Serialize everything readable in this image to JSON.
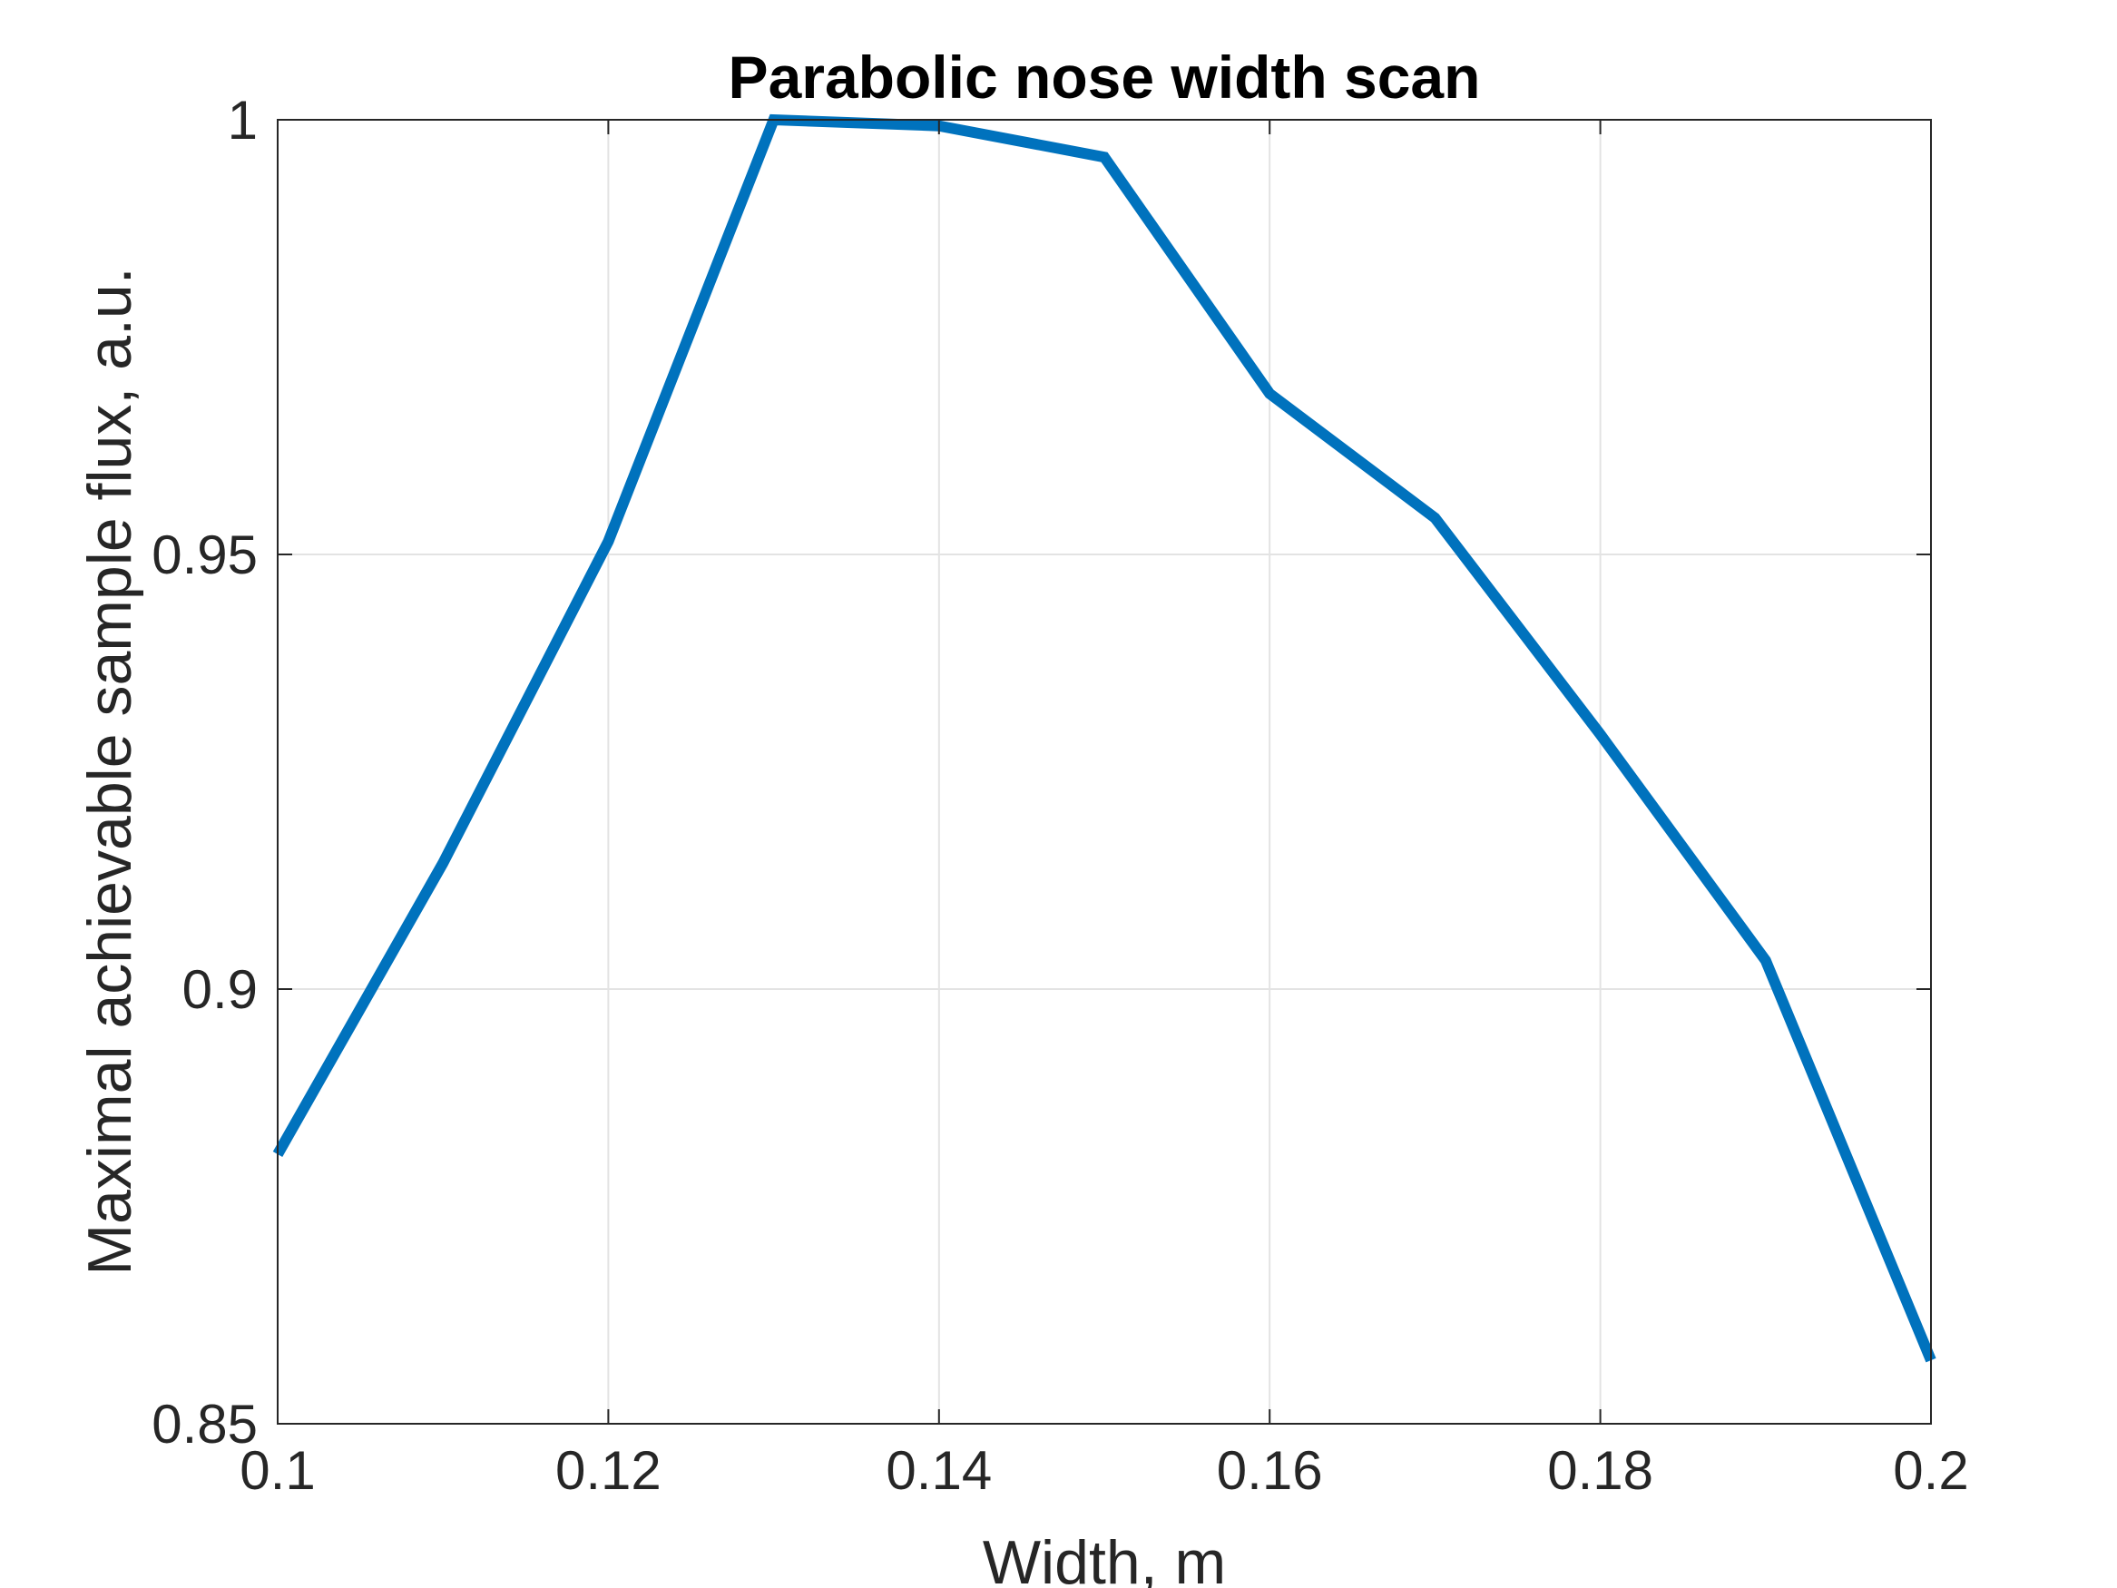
{
  "chart_data": {
    "type": "line",
    "title": "Parabolic nose width scan",
    "xlabel": "Width, m",
    "ylabel": "Maximal achievable sample flux, a.u.",
    "xlim": [
      0.1,
      0.2
    ],
    "ylim": [
      0.85,
      1
    ],
    "xticks": [
      "0.1",
      "0.12",
      "0.14",
      "0.16",
      "0.18",
      "0.2"
    ],
    "yticks": [
      "0.85",
      "0.9",
      "0.95",
      "1"
    ],
    "grid": true,
    "series": [
      {
        "color": "#0072BD",
        "x": [
          0.1,
          0.11,
          0.12,
          0.13,
          0.14,
          0.15,
          0.16,
          0.17,
          0.18,
          0.19,
          0.2
        ],
        "y": [
          0.881,
          0.9145,
          0.9515,
          1.0,
          0.9993,
          0.9957,
          0.9685,
          0.9542,
          0.9293,
          0.9033,
          0.8573
        ]
      }
    ]
  }
}
